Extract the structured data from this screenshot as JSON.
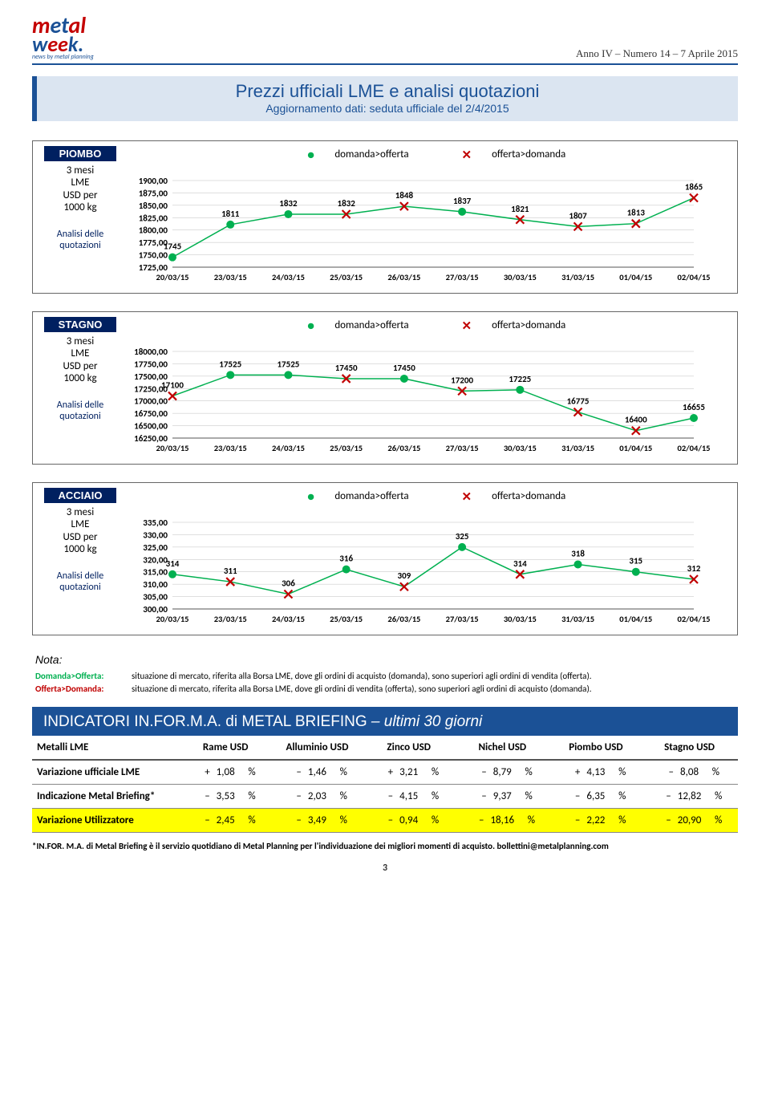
{
  "header": {
    "issue": "Anno IV – Numero 14 – 7 Aprile 2015",
    "logo_line1": "metal",
    "logo_line2": "week.",
    "logo_tag": "news by metal planning"
  },
  "title": {
    "main": "Prezzi ufficiali LME e analisi quotazioni",
    "sub": "Aggiornamento dati: seduta ufficiale del 2/4/2015"
  },
  "labels": {
    "period": "3 mesi",
    "exchange": "LME",
    "unit1": "USD per",
    "unit2": "1000 kg",
    "an1": "Analisi delle",
    "an2": "quotazioni",
    "legend_d": "domanda>offerta",
    "legend_o": "offerta>domanda"
  },
  "dates": [
    "20/03/15",
    "23/03/15",
    "24/03/15",
    "25/03/15",
    "26/03/15",
    "27/03/15",
    "30/03/15",
    "31/03/15",
    "01/04/15",
    "02/04/15"
  ],
  "charts": [
    {
      "metal": "PIOMBO",
      "ymin": 1725,
      "ymax": 1900,
      "ystep": 25,
      "data": [
        {
          "v": 1745,
          "t": "d"
        },
        {
          "v": 1811,
          "t": "d"
        },
        {
          "v": 1832,
          "t": "d"
        },
        {
          "v": 1832,
          "t": "o"
        },
        {
          "v": 1848,
          "t": "o"
        },
        {
          "v": 1837,
          "t": "d"
        },
        {
          "v": 1821,
          "t": "o"
        },
        {
          "v": 1807,
          "t": "o"
        },
        {
          "v": 1813,
          "t": "o"
        },
        {
          "v": 1865,
          "t": "o"
        }
      ]
    },
    {
      "metal": "STAGNO",
      "ymin": 16250,
      "ymax": 18000,
      "ystep": 250,
      "data": [
        {
          "v": 17100,
          "t": "o"
        },
        {
          "v": 17525,
          "t": "d"
        },
        {
          "v": 17525,
          "t": "d"
        },
        {
          "v": 17450,
          "t": "o"
        },
        {
          "v": 17450,
          "t": "d"
        },
        {
          "v": 17200,
          "t": "o"
        },
        {
          "v": 17225,
          "t": "d"
        },
        {
          "v": 16775,
          "t": "o"
        },
        {
          "v": 16400,
          "t": "o"
        },
        {
          "v": 16655,
          "t": "d"
        }
      ]
    },
    {
      "metal": "ACCIAIO",
      "ymin": 300,
      "ymax": 335,
      "ystep": 5,
      "data": [
        {
          "v": 314,
          "t": "d"
        },
        {
          "v": 311,
          "t": "o"
        },
        {
          "v": 306,
          "t": "o"
        },
        {
          "v": 316,
          "t": "d"
        },
        {
          "v": 309,
          "t": "o"
        },
        {
          "v": 325,
          "t": "d"
        },
        {
          "v": 314,
          "t": "o"
        },
        {
          "v": 318,
          "t": "d"
        },
        {
          "v": 315,
          "t": "d"
        },
        {
          "v": 312,
          "t": "o"
        }
      ]
    }
  ],
  "note": {
    "title": "Nota:",
    "r1_lab": "Domanda>Offerta:",
    "r1_txt": "situazione di mercato, riferita alla Borsa LME, dove gli ordini di acquisto (domanda), sono superiori agli ordini di vendita (offerta).",
    "r2_lab": "Offerta>Domanda:",
    "r2_txt": "situazione di mercato, riferita alla Borsa LME, dove gli ordini di vendita (offerta), sono superiori agli ordini di acquisto (domanda)."
  },
  "indicators": {
    "title_a": "INDICATORI IN.FOR.M.A. di METAL BRIEFING",
    "title_b": " – ultimi 30 giorni",
    "headers": [
      "Metalli LME",
      "Rame USD",
      "Alluminio USD",
      "Zinco USD",
      "Nichel USD",
      "Piombo USD",
      "Stagno USD"
    ],
    "rows": [
      {
        "label": "Variazione ufficiale LME",
        "vals": [
          [
            "+",
            "1,08",
            "%"
          ],
          [
            "–",
            "1,46",
            "%"
          ],
          [
            "+",
            "3,21",
            "%"
          ],
          [
            "–",
            "8,79",
            "%"
          ],
          [
            "+",
            "4,13",
            "%"
          ],
          [
            "–",
            "8,08",
            "%"
          ]
        ]
      },
      {
        "label": "Indicazione Metal Briefing*",
        "vals": [
          [
            "–",
            "3,53",
            "%"
          ],
          [
            "–",
            "2,03",
            "%"
          ],
          [
            "–",
            "4,15",
            "%"
          ],
          [
            "–",
            "9,37",
            "%"
          ],
          [
            "–",
            "6,35",
            "%"
          ],
          [
            "–",
            "12,82",
            "%"
          ]
        ]
      },
      {
        "label": "Variazione Utilizzatore",
        "yellow": true,
        "vals": [
          [
            "–",
            "2,45",
            "%"
          ],
          [
            "–",
            "3,49",
            "%"
          ],
          [
            "–",
            "0,94",
            "%"
          ],
          [
            "–",
            "18,16",
            "%"
          ],
          [
            "–",
            "2,22",
            "%"
          ],
          [
            "–",
            "20,90",
            "%"
          ]
        ]
      }
    ],
    "footnote": "*IN.FOR. M.A. di Metal Briefing è il servizio quotidiano di Metal Planning per l'individuazione dei migliori momenti di acquisto.   bollettini@metalplanning.com"
  },
  "page": "3",
  "colors": {
    "green": "#00b050",
    "red": "#c00000",
    "grid": "#bfbfbf",
    "axis": "#555"
  }
}
